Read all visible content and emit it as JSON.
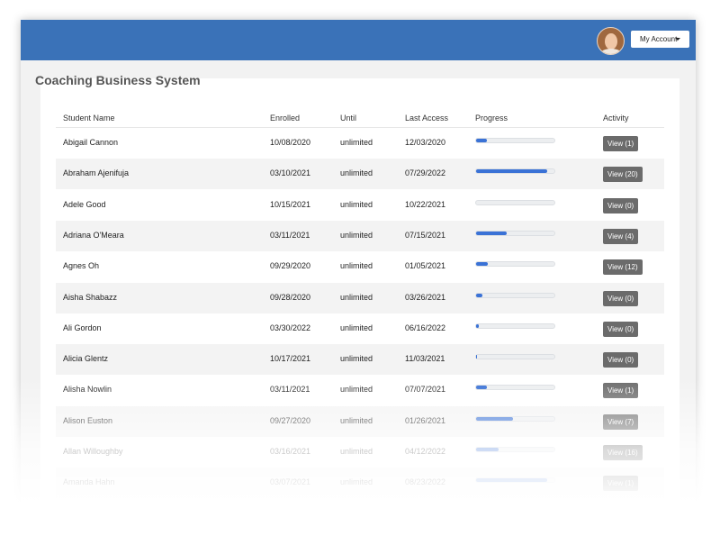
{
  "header": {
    "account_button": "My Account"
  },
  "table": {
    "title": "Coaching Business System",
    "columns": [
      "Student Name",
      "Enrolled",
      "Until",
      "Last Access",
      "Progress",
      "Activity"
    ],
    "rows": [
      {
        "name": "Abigail Cannon",
        "enrolled": "10/08/2020",
        "until": "unlimited",
        "last_access": "12/03/2020",
        "progress": 14,
        "activity": "View (1)"
      },
      {
        "name": "Abraham Ajenifuja",
        "enrolled": "03/10/2021",
        "until": "unlimited",
        "last_access": "07/29/2022",
        "progress": 91,
        "activity": "View (20)"
      },
      {
        "name": "Adele Good",
        "enrolled": "10/15/2021",
        "until": "unlimited",
        "last_access": "10/22/2021",
        "progress": 0,
        "activity": "View (0)"
      },
      {
        "name": "Adriana O'Meara",
        "enrolled": "03/11/2021",
        "until": "unlimited",
        "last_access": "07/15/2021",
        "progress": 39,
        "activity": "View (4)"
      },
      {
        "name": "Agnes Oh",
        "enrolled": "09/29/2020",
        "until": "unlimited",
        "last_access": "01/05/2021",
        "progress": 15,
        "activity": "View (12)"
      },
      {
        "name": "Aisha Shabazz",
        "enrolled": "09/28/2020",
        "until": "unlimited",
        "last_access": "03/26/2021",
        "progress": 8,
        "activity": "View (0)"
      },
      {
        "name": "Ali Gordon",
        "enrolled": "03/30/2022",
        "until": "unlimited",
        "last_access": "06/16/2022",
        "progress": 3,
        "activity": "View (0)"
      },
      {
        "name": "Alicia Glentz",
        "enrolled": "10/17/2021",
        "until": "unlimited",
        "last_access": "11/03/2021",
        "progress": 1,
        "activity": "View (0)"
      },
      {
        "name": "Alisha Nowlin",
        "enrolled": "03/11/2021",
        "until": "unlimited",
        "last_access": "07/07/2021",
        "progress": 14,
        "activity": "View (1)"
      },
      {
        "name": "Alison Euston",
        "enrolled": "09/27/2020",
        "until": "unlimited",
        "last_access": "01/26/2021",
        "progress": 47,
        "activity": "View (7)"
      },
      {
        "name": "Allan Willoughby",
        "enrolled": "03/16/2021",
        "until": "unlimited",
        "last_access": "04/12/2022",
        "progress": 29,
        "activity": "View (16)"
      },
      {
        "name": "Amanda Hahn",
        "enrolled": "03/07/2021",
        "until": "unlimited",
        "last_access": "08/23/2022",
        "progress": 91,
        "activity": "View (1)"
      }
    ]
  }
}
